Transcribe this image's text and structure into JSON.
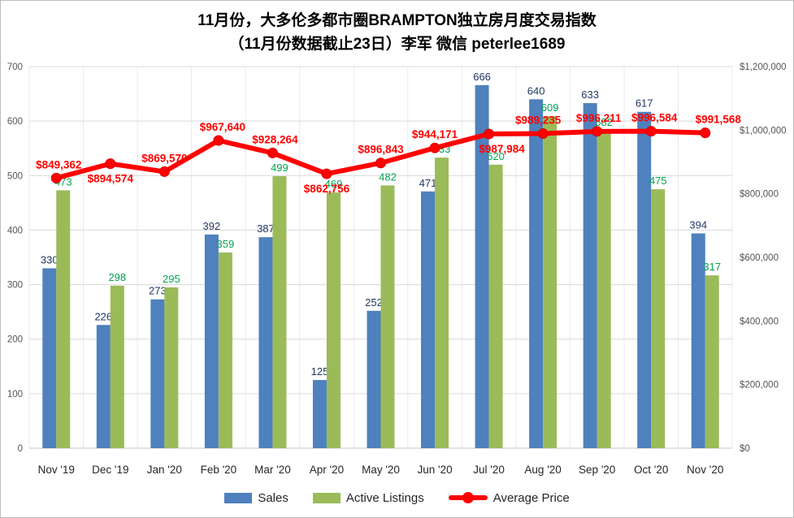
{
  "title": {
    "line1": "11月份，大多伦多都市圈BRAMPTON独立房月度交易指数",
    "line2": "（11月份数据截止23日）李军 微信 peterlee1689"
  },
  "legend": {
    "items": [
      {
        "label": "Sales",
        "type": "bar",
        "color": "#4E81BD"
      },
      {
        "label": "Active Listings",
        "type": "bar",
        "color": "#9BBB59"
      },
      {
        "label": "Average Price",
        "type": "line",
        "color": "#FF0000"
      }
    ]
  },
  "chart_data": {
    "type": "bar",
    "subtype": "combo-bar-line",
    "categories": [
      "Nov '19",
      "Dec '19",
      "Jan '20",
      "Feb '20",
      "Mar '20",
      "Apr '20",
      "May '20",
      "Jun '20",
      "Jul '20",
      "Aug '20",
      "Sep '20",
      "Oct '20",
      "Nov '20"
    ],
    "series": [
      {
        "name": "Sales",
        "chart": "bar",
        "axis": "left",
        "color": "#4E81BD",
        "label_color": "#203864",
        "values": [
          330,
          226,
          273,
          392,
          387,
          125,
          252,
          471,
          666,
          640,
          633,
          617,
          394
        ]
      },
      {
        "name": "Active Listings",
        "chart": "bar",
        "axis": "left",
        "color": "#9BBB59",
        "label_color": "#00A550",
        "values": [
          473,
          298,
          295,
          359,
          499,
          469,
          482,
          533,
          520,
          609,
          582,
          475,
          317
        ]
      },
      {
        "name": "Average Price",
        "chart": "line",
        "axis": "right",
        "color": "#FF0000",
        "label_color": "#FF0000",
        "values": [
          849362,
          894574,
          869570,
          967640,
          928264,
          862756,
          896843,
          944171,
          987984,
          989235,
          996211,
          996584,
          991568
        ],
        "labels": [
          "$849,362",
          "$894,574",
          "$869,570",
          "$967,640",
          "$928,264",
          "$862,756",
          "$896,843",
          "$944,171",
          "$987,984",
          "$989,235",
          "$996,211",
          "$996,584",
          "$991,568"
        ],
        "label_below": [
          false,
          true,
          false,
          false,
          false,
          true,
          false,
          false,
          true,
          false,
          false,
          false,
          false
        ],
        "label_dx": [
          3,
          0,
          0,
          5,
          3,
          0,
          0,
          0,
          16,
          -6,
          2,
          4,
          16
        ]
      }
    ],
    "left_axis": {
      "min": 0,
      "max": 700,
      "step": 100
    },
    "right_axis": {
      "min": 0,
      "max": 1200000,
      "step": 200000,
      "tick_prefix": "$"
    },
    "grid": {
      "horizontal": true,
      "vertical": true
    },
    "legend_position": "bottom"
  }
}
